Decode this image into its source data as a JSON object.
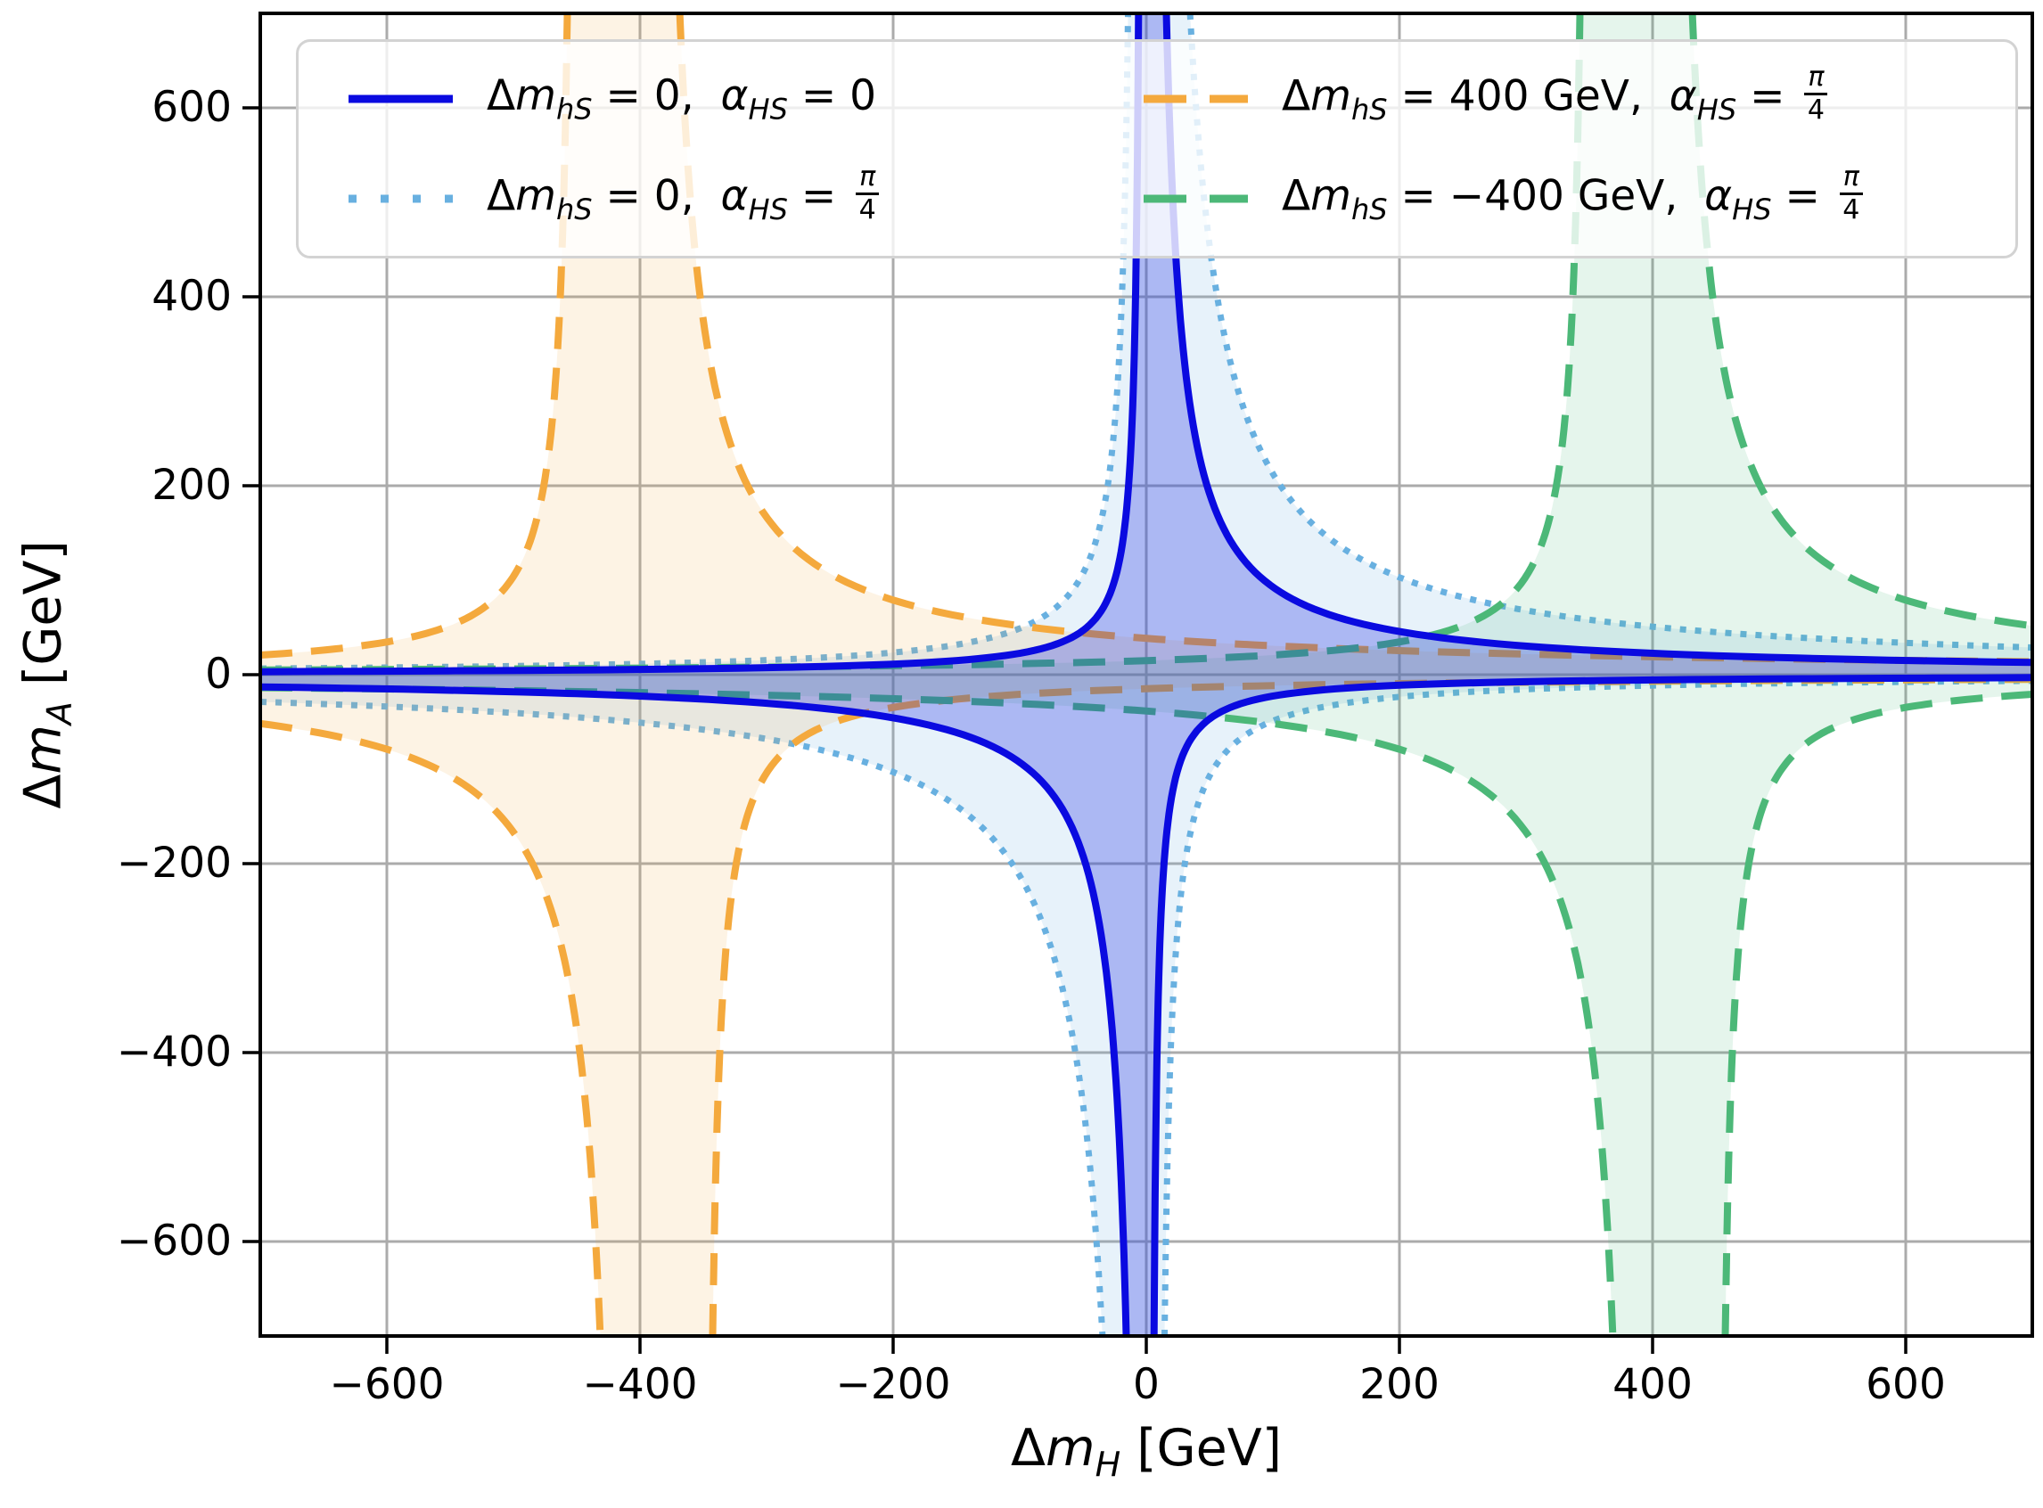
{
  "legend": {
    "entries": [
      {
        "d": "Δ",
        "m": "m",
        "msub": "hS",
        "mval": " = 0,  ",
        "a": "α",
        "asub": "HS",
        "aeq": " = ",
        "aval": "0",
        "color": "#0a0ae0",
        "dash": "solid"
      },
      {
        "d": "Δ",
        "m": "m",
        "msub": "hS",
        "mval": " = 0,  ",
        "a": "α",
        "asub": "HS",
        "aeq": " = ",
        "aval": "",
        "frac": {
          "n": "π",
          "d": "4"
        },
        "color": "#68b0e0",
        "dash": "dotted"
      },
      {
        "d": "Δ",
        "m": "m",
        "msub": "hS",
        "mval": " = 400 GeV,  ",
        "a": "α",
        "asub": "HS",
        "aeq": " = ",
        "aval": "",
        "frac": {
          "n": "π",
          "d": "4"
        },
        "color": "#f4a93d",
        "dash": "dashed"
      },
      {
        "d": "Δ",
        "m": "m",
        "msub": "hS",
        "mval": " = −400 GeV,  ",
        "a": "α",
        "asub": "HS",
        "aeq": " = ",
        "aval": "",
        "frac": {
          "n": "π",
          "d": "4"
        },
        "color": "#4cb878",
        "dash": "dashed"
      }
    ]
  },
  "chart_data": {
    "type": "line",
    "title": "",
    "xlabel": {
      "d": "Δ",
      "m": "m",
      "sub": "H",
      "unit": " [GeV]"
    },
    "ylabel": {
      "d": "Δ",
      "m": "m",
      "sub": "A",
      "unit": " [GeV]"
    },
    "xlim": [
      -700,
      700
    ],
    "ylim": [
      -700,
      700
    ],
    "xticks": [
      -600,
      -400,
      -200,
      0,
      200,
      400,
      600
    ],
    "yticks": [
      600,
      400,
      200,
      0,
      -200,
      -400,
      -600
    ],
    "x_tick_labels": [
      "−600",
      "−400",
      "−200",
      "0",
      "200",
      "400",
      "600"
    ],
    "y_tick_labels": [
      "600",
      "400",
      "200",
      "0",
      "−200",
      "−400",
      "−600"
    ],
    "grid": true,
    "grid_color": "#ababab",
    "legend_position": "upper center, 2 columns",
    "model": "Each series is the band -An <= f(u) <= Aw of offset hyperbolas, u = x - x0 (GeV). Boundaries: upper-left y = An/(al-u); upper-right y = Aw/(u-ar); lower-left y = -Aw/(-u-ar); lower-right y = -An/(u+al+2*|al|)… i.e. four pole branches clipped to the axes window, 180deg-symmetric about (x0,0). Values in GeV^2.",
    "series": [
      {
        "name": "dmhS=0, aHS=pi/4",
        "x0": 0,
        "Aw": 20000,
        "ar": 6,
        "An": 4500,
        "al": -8,
        "color": "#68b0e0",
        "fill": "rgba(104,176,224,0.16)",
        "dash": "dotted",
        "lw": 7,
        "legend_index": 1
      },
      {
        "name": "dmhS=400GeV, aHS=pi/4",
        "x0": -400,
        "Aw": 15000,
        "ar": 10,
        "An": 5200,
        "al": -50,
        "color": "#f4a93d",
        "fill": "rgba(244,169,61,0.14)",
        "dash": "dashed",
        "lw": 8,
        "legend_index": 2
      },
      {
        "name": "dmhS=-400GeV, aHS=pi/4",
        "x0": 400,
        "Aw": 15000,
        "ar": 10,
        "An": 5200,
        "al": -50,
        "color": "#4cb878",
        "fill": "rgba(71,181,120,0.14)",
        "dash": "dashed",
        "lw": 8,
        "legend_index": 3
      },
      {
        "name": "dmhS=0, aHS=0",
        "x0": 0,
        "Aw": 9000,
        "ar": 3,
        "An": 2200,
        "al": -3,
        "color": "#0a0ae0",
        "fill": "rgba(20,35,225,0.28)",
        "dash": "solid",
        "lw": 8,
        "legend_index": 0
      }
    ]
  }
}
